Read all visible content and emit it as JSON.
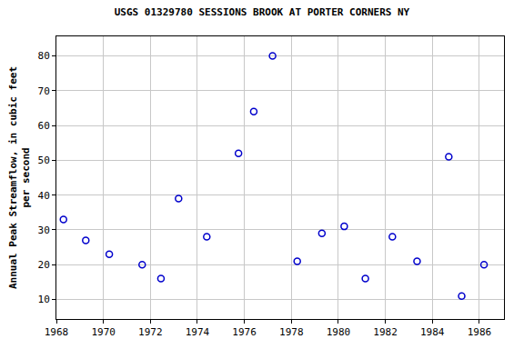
{
  "chart_data": {
    "type": "scatter",
    "title": "USGS 01329780 SESSIONS BROOK AT PORTER CORNERS NY",
    "y_label": "Annual Peak Streamflow, in cubic feet\nper second",
    "x": [
      1968.3,
      1969.25,
      1970.25,
      1971.65,
      1972.45,
      1973.2,
      1974.4,
      1975.75,
      1976.4,
      1977.2,
      1978.25,
      1979.3,
      1980.25,
      1981.15,
      1982.3,
      1983.35,
      1984.7,
      1985.25,
      1986.2
    ],
    "values": [
      33,
      27,
      23,
      20,
      16,
      39,
      28,
      52,
      64,
      80,
      21,
      29,
      31,
      16,
      28,
      21,
      51,
      11,
      20
    ],
    "color": "#0000cc",
    "marker": "circle-open",
    "xlim": [
      1968,
      1987.05
    ],
    "xticks": [
      1968,
      1970,
      1972,
      1974,
      1976,
      1978,
      1980,
      1982,
      1984,
      1986
    ],
    "ylim": [
      4.4,
      85.6
    ],
    "yticks": [
      10,
      20,
      30,
      40,
      50,
      60,
      70,
      80
    ],
    "grid": true
  }
}
